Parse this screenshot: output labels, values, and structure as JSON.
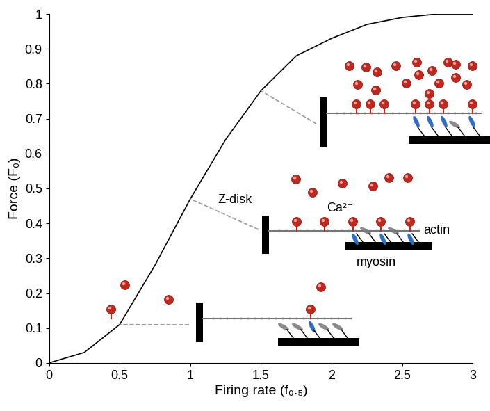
{
  "chart_data": {
    "type": "line",
    "x_label": "Firing rate (f₀.₅)",
    "y_label": "Force (F₀)",
    "x": [
      0,
      0.25,
      0.5,
      0.75,
      1.0,
      1.25,
      1.5,
      1.75,
      2.0,
      2.25,
      2.5,
      2.75,
      3.0
    ],
    "values": [
      0,
      0.03,
      0.11,
      0.28,
      0.47,
      0.64,
      0.78,
      0.88,
      0.93,
      0.97,
      0.99,
      1.0,
      1.0
    ],
    "color": "#000000",
    "xlim": [
      0,
      3
    ],
    "xticks": [
      0,
      0.5,
      1,
      1.5,
      2,
      2.5,
      3
    ],
    "ylim": [
      0,
      1
    ],
    "yticks": [
      0,
      0.1,
      0.2,
      0.3,
      0.4,
      0.5,
      0.6,
      0.7,
      0.8,
      0.9,
      1
    ],
    "grid": false,
    "annotations": [
      "Z-disk",
      "Ca²⁺",
      "actin",
      "myosin"
    ]
  }
}
